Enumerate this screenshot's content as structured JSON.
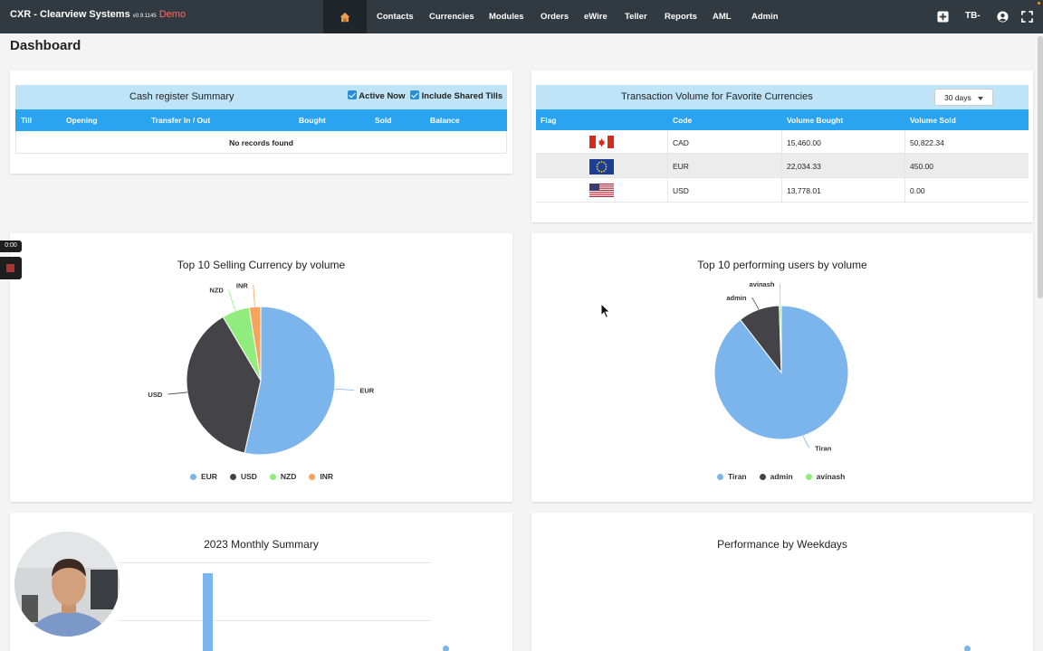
{
  "app": {
    "brand": "CXR",
    "company": "- Clearview Systems",
    "version": "v0.9.1145",
    "env": "Demo"
  },
  "nav": [
    "Contacts",
    "Currencies",
    "Modules",
    "Orders",
    "eWire",
    "Teller",
    "Reports",
    "AML",
    "Admin"
  ],
  "user": {
    "initials": "TB-"
  },
  "page_title": "Dashboard",
  "cash_register": {
    "title": "Cash register Summary",
    "active_now": "Active Now",
    "include_shared": "Include Shared Tills",
    "columns": [
      "Till",
      "Opening",
      "Transfer In / Out",
      "Bought",
      "Sold",
      "Balance"
    ],
    "empty": "No records found"
  },
  "transaction_volume": {
    "title": "Transaction Volume for Favorite Currencies",
    "range": "30 days",
    "columns": [
      "Flag",
      "Code",
      "Volume Bought",
      "Volume Sold"
    ],
    "rows": [
      {
        "code": "CAD",
        "bought": "15,460.00",
        "sold": "50,822.34",
        "flag": "canada-flag"
      },
      {
        "code": "EUR",
        "bought": "22,034.33",
        "sold": "450.00",
        "flag": "eu-flag"
      },
      {
        "code": "USD",
        "bought": "13,778.01",
        "sold": "0.00",
        "flag": "us-flag"
      }
    ]
  },
  "colors": {
    "blue": "#7cb5ec",
    "black": "#434348",
    "green": "#90ed7d",
    "orange": "#f7a35c",
    "header": "#2aa3f0",
    "head_bg": "#bfe4f7",
    "topbar": "#313a40"
  },
  "chart_data": [
    {
      "type": "pie",
      "title": "Top 10 Selling Currency by volume",
      "categories": [
        "EUR",
        "USD",
        "NZD",
        "INR"
      ],
      "values": [
        53.5,
        38.0,
        6.0,
        2.5
      ],
      "legend": "bottom"
    },
    {
      "type": "pie",
      "title": "Top 10 performing users by volume",
      "categories": [
        "Tiran",
        "admin",
        "avinash"
      ],
      "values": [
        89.5,
        10.0,
        0.5
      ],
      "legend": "bottom"
    },
    {
      "type": "bar",
      "title": "2023 Monthly Summary",
      "legend": "right"
    },
    {
      "type": "bar",
      "title": "Performance by Weekdays",
      "legend": "right"
    }
  ],
  "recorder": {
    "time": "0:00"
  }
}
